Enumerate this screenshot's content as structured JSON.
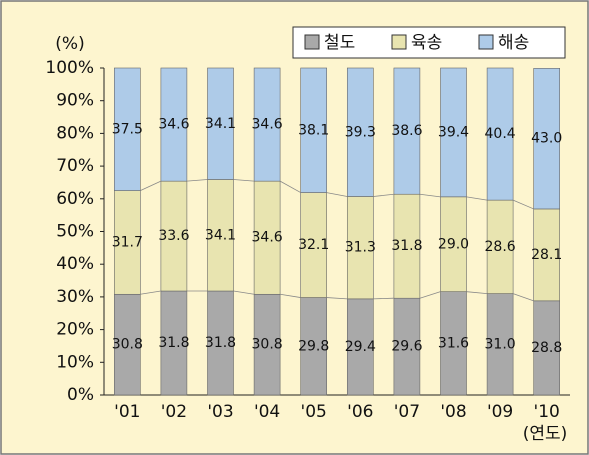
{
  "chart_data": {
    "type": "stacked_bar",
    "y_label": "(%)",
    "x_label": "(연도)",
    "categories": [
      "'01",
      "'02",
      "'03",
      "'04",
      "'05",
      "'06",
      "'07",
      "'08",
      "'09",
      "'10"
    ],
    "series": [
      {
        "name": "철도",
        "color": "#a9a9a9",
        "values": [
          30.8,
          31.8,
          31.8,
          30.8,
          29.8,
          29.4,
          29.6,
          31.6,
          31.0,
          28.8
        ],
        "value_labels": [
          "30.8",
          "31.8",
          "31.8",
          "30.8",
          "29.8",
          "29.4",
          "29.6",
          "31.6",
          "31.0",
          "28.8"
        ]
      },
      {
        "name": "육송",
        "color": "#e8e4b0",
        "values": [
          31.7,
          33.6,
          34.1,
          34.6,
          32.1,
          31.3,
          31.8,
          29.0,
          28.6,
          28.1
        ],
        "value_labels": [
          "31.7",
          "33.6",
          "34.1",
          "34.6",
          "32.1",
          "31.3",
          "31.8",
          "29.0",
          "28.6",
          "28.1"
        ]
      },
      {
        "name": "해송",
        "color": "#aecbe8",
        "values": [
          37.5,
          34.6,
          34.1,
          34.6,
          38.1,
          39.3,
          38.6,
          39.4,
          40.4,
          43.0
        ],
        "value_labels": [
          "37.5",
          "34.6",
          "34.1",
          "34.6",
          "38.1",
          "39.3",
          "38.6",
          "39.4",
          "40.4",
          "43.0"
        ]
      }
    ],
    "ylim": [
      0,
      100
    ],
    "yticks": [
      {
        "value": 0,
        "label": "0%"
      },
      {
        "value": 10,
        "label": "10%"
      },
      {
        "value": 20,
        "label": "20%"
      },
      {
        "value": 30,
        "label": "30%"
      },
      {
        "value": 40,
        "label": "40%"
      },
      {
        "value": 50,
        "label": "50%"
      },
      {
        "value": 60,
        "label": "60%"
      },
      {
        "value": 70,
        "label": "70%"
      },
      {
        "value": 80,
        "label": "80%"
      },
      {
        "value": 90,
        "label": "90%"
      },
      {
        "value": 100,
        "label": "100%"
      }
    ],
    "legend": "top-right"
  }
}
